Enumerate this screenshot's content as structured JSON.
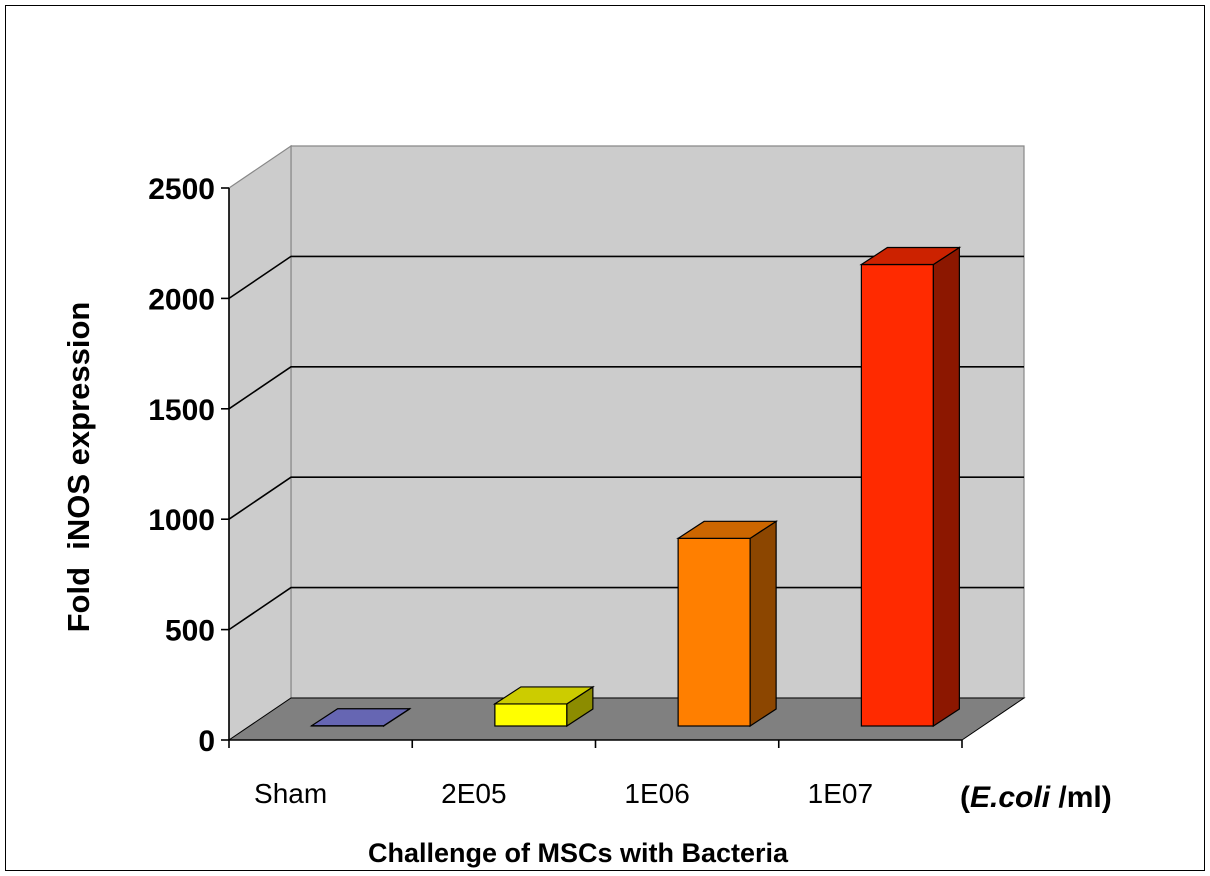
{
  "chart_data": {
    "type": "bar",
    "style": "3d-column",
    "categories": [
      "Sham",
      "2E05",
      "1E06",
      "1E07"
    ],
    "values": [
      1,
      100,
      850,
      2090
    ],
    "colors": [
      "#8080e0",
      "#ffff00",
      "#ff7f00",
      "#ff2a00"
    ],
    "ylabel": "Fold  iNOS expression",
    "xlabel": "Challenge of MSCs with Bacteria",
    "unit_label": {
      "open": "(",
      "italic": "E.coli",
      "close": " /ml)"
    },
    "ylim": [
      0,
      2500
    ],
    "yticks": [
      0,
      500,
      1000,
      1500,
      2000,
      2500
    ],
    "grid": true
  }
}
